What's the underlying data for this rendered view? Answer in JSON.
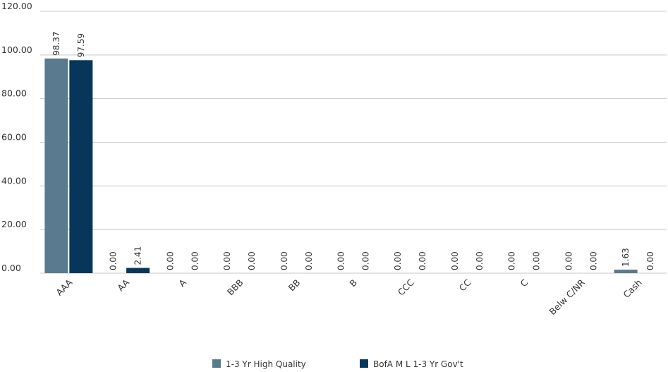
{
  "chart_data": {
    "type": "bar",
    "categories": [
      "AAA",
      "AA",
      "A",
      "BBB",
      "BB",
      "B",
      "CCC",
      "CC",
      "C",
      "Belw C/NR",
      "Cash"
    ],
    "series": [
      {
        "name": "1-3 Yr High Quality",
        "color": "#5a7b8f",
        "values": [
          98.37,
          0.0,
          0.0,
          0.0,
          0.0,
          0.0,
          0.0,
          0.0,
          0.0,
          0.0,
          1.63
        ],
        "labels": [
          "98.37",
          "0.00",
          "0.00",
          "0.00",
          "0.00",
          "0.00",
          "0.00",
          "0.00",
          "0.00",
          "0.00",
          "1.63"
        ]
      },
      {
        "name": "BofA M L 1-3 Yr Gov't",
        "color": "#06375a",
        "values": [
          97.59,
          2.41,
          0.0,
          0.0,
          0.0,
          0.0,
          0.0,
          0.0,
          0.0,
          0.0,
          0.0
        ],
        "labels": [
          "97.59",
          "2.41",
          "0.00",
          "0.00",
          "0.00",
          "0.00",
          "0.00",
          "0.00",
          "0.00",
          "0.00",
          "0.00"
        ]
      }
    ],
    "y_ticks": [
      "0.00",
      "20.00",
      "40.00",
      "60.00",
      "80.00",
      "100.00",
      "120.00"
    ],
    "ylim": [
      0,
      120
    ],
    "grid": true,
    "legend_position": "bottom",
    "gridline_color": "#c8c8c8"
  }
}
